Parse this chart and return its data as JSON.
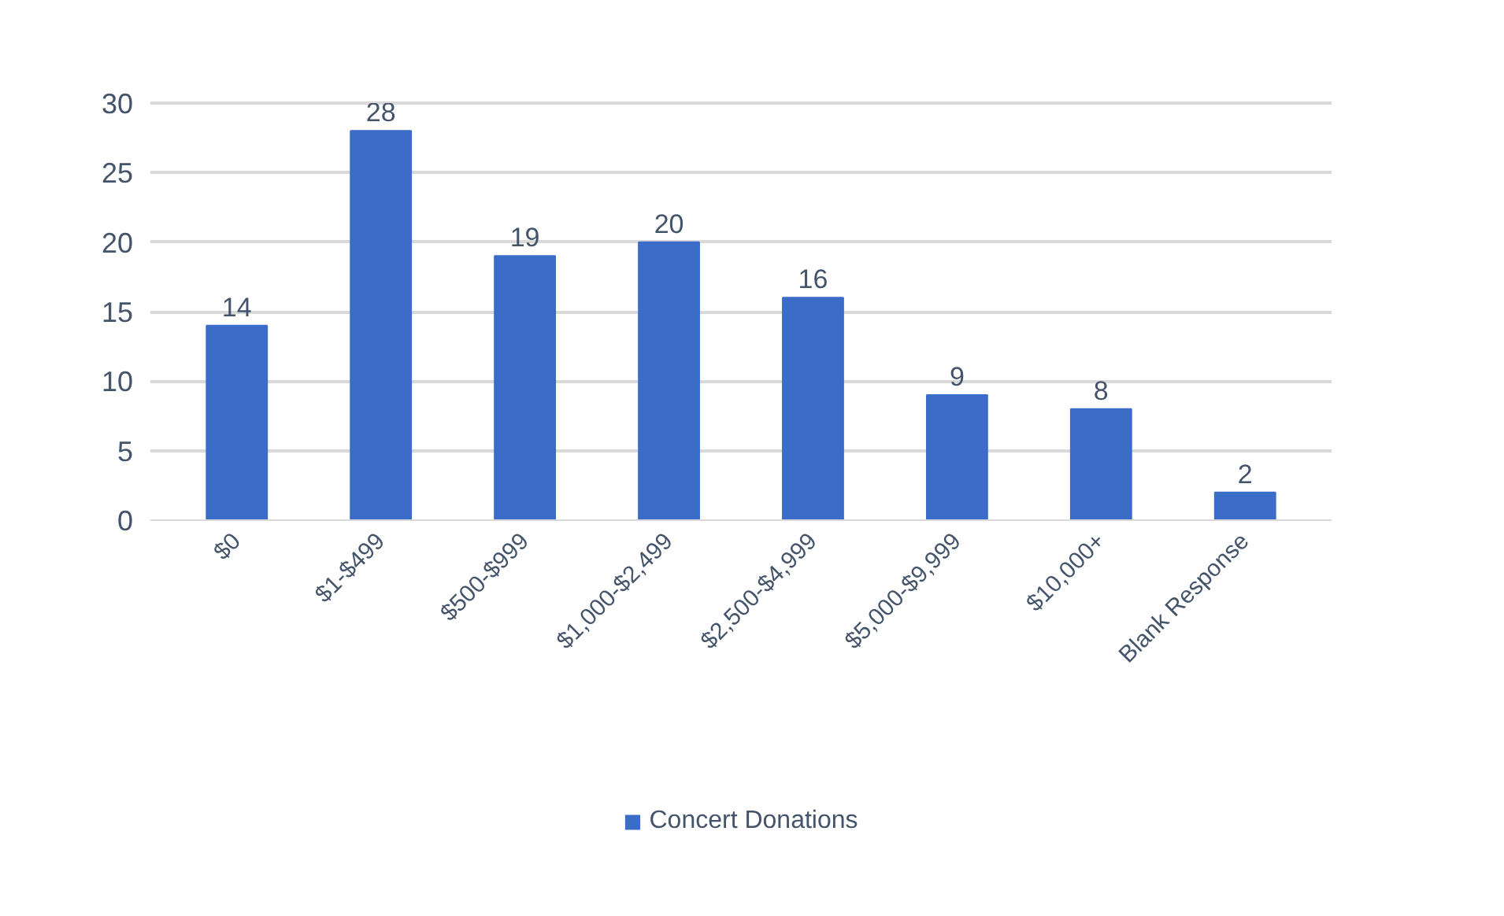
{
  "chart_data": {
    "type": "bar",
    "categories": [
      "$0",
      "$1-$499",
      "$500-$999",
      "$1,000-$2,499",
      "$2,500-$4,999",
      "$5,000-$9,999",
      "$10,000+",
      "Blank Response"
    ],
    "series": [
      {
        "name": "Concert Donations",
        "color": "#3a6cc8",
        "values": [
          14,
          28,
          19,
          20,
          16,
          9,
          8,
          2
        ]
      }
    ],
    "ylim": [
      0,
      30
    ],
    "yticks": [
      0,
      5,
      10,
      15,
      20,
      25,
      30
    ],
    "grid": "y",
    "legend": "bottom",
    "data_labels": true
  }
}
